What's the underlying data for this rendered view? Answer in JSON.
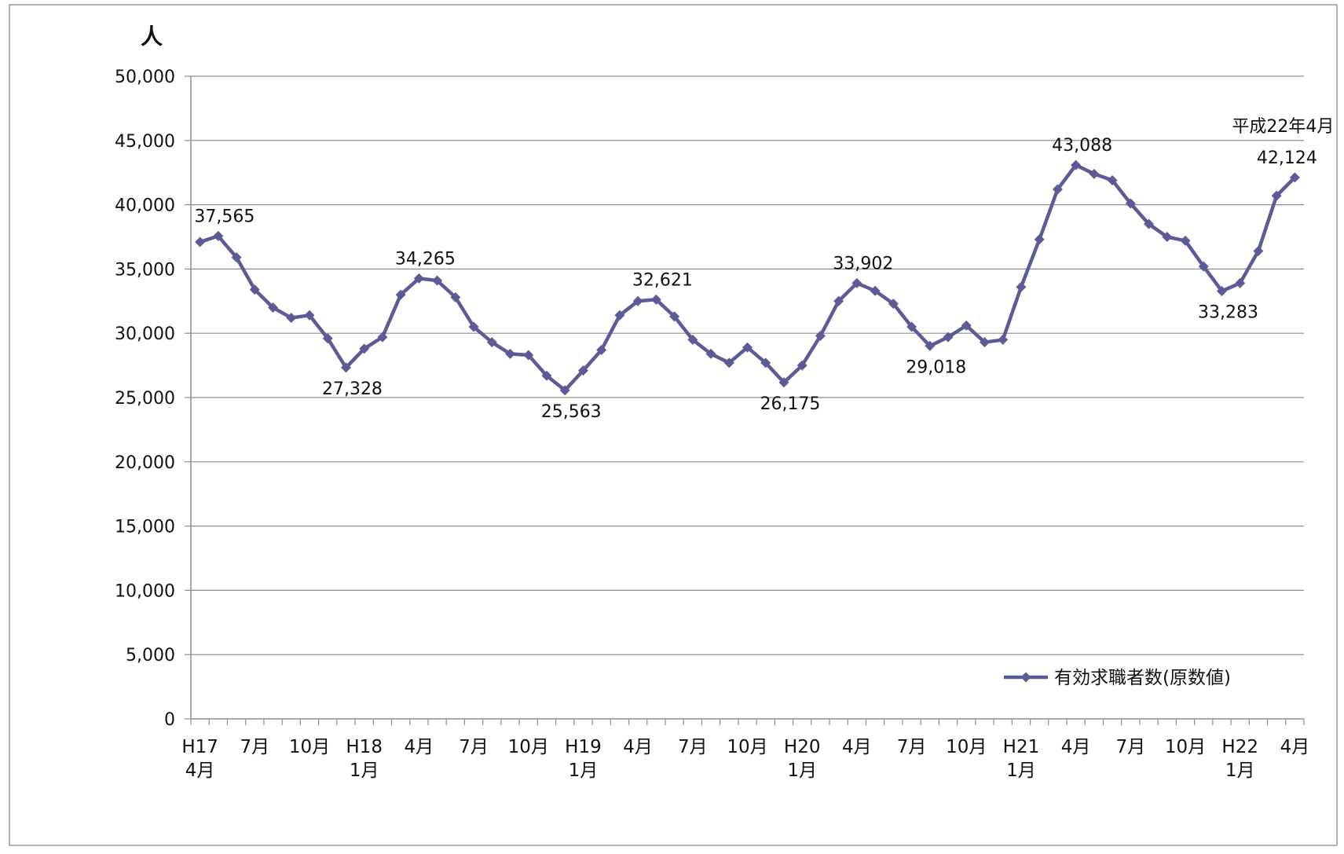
{
  "chart_data": {
    "type": "line",
    "ylabel": "人",
    "ylim": [
      0,
      50000
    ],
    "yticks": [
      0,
      5000,
      10000,
      15000,
      20000,
      25000,
      30000,
      35000,
      40000,
      45000,
      50000
    ],
    "ytick_labels": [
      "0",
      "5,000",
      "10,000",
      "15,000",
      "20,000",
      "25,000",
      "30,000",
      "35,000",
      "40,000",
      "45,000",
      "50,000"
    ],
    "grid": true,
    "legend_position": "bottom-right",
    "x_tick_labels": [
      {
        "i": 0,
        "lines": [
          "H17",
          "4月"
        ]
      },
      {
        "i": 3,
        "lines": [
          "7月"
        ]
      },
      {
        "i": 6,
        "lines": [
          "10月"
        ]
      },
      {
        "i": 9,
        "lines": [
          "H18",
          "1月"
        ]
      },
      {
        "i": 12,
        "lines": [
          "4月"
        ]
      },
      {
        "i": 15,
        "lines": [
          "7月"
        ]
      },
      {
        "i": 18,
        "lines": [
          "10月"
        ]
      },
      {
        "i": 21,
        "lines": [
          "H19",
          "1月"
        ]
      },
      {
        "i": 24,
        "lines": [
          "4月"
        ]
      },
      {
        "i": 27,
        "lines": [
          "7月"
        ]
      },
      {
        "i": 30,
        "lines": [
          "10月"
        ]
      },
      {
        "i": 33,
        "lines": [
          "H20",
          "1月"
        ]
      },
      {
        "i": 36,
        "lines": [
          "4月"
        ]
      },
      {
        "i": 39,
        "lines": [
          "7月"
        ]
      },
      {
        "i": 42,
        "lines": [
          "10月"
        ]
      },
      {
        "i": 45,
        "lines": [
          "H21",
          "1月"
        ]
      },
      {
        "i": 48,
        "lines": [
          "4月"
        ]
      },
      {
        "i": 51,
        "lines": [
          "7月"
        ]
      },
      {
        "i": 54,
        "lines": [
          "10月"
        ]
      },
      {
        "i": 57,
        "lines": [
          "H22",
          "1月"
        ]
      },
      {
        "i": 60,
        "lines": [
          "4月"
        ]
      }
    ],
    "series": [
      {
        "name": "有効求職者数(原数値)",
        "color": "#5b5b96",
        "values": [
          37100,
          37565,
          35900,
          33400,
          32000,
          31200,
          31400,
          29600,
          27328,
          28800,
          29700,
          33000,
          34265,
          34100,
          32800,
          30500,
          29300,
          28400,
          28300,
          26700,
          25563,
          27100,
          28700,
          31400,
          32500,
          32621,
          31300,
          29500,
          28400,
          27700,
          28900,
          27700,
          26175,
          27500,
          29800,
          32500,
          33902,
          33300,
          32300,
          30500,
          29018,
          29700,
          30600,
          29300,
          29500,
          33600,
          37300,
          41200,
          43088,
          42400,
          41900,
          40100,
          38500,
          37500,
          37200,
          35200,
          33283,
          33900,
          36400,
          40700,
          42124
        ]
      }
    ],
    "data_labels": [
      {
        "i": 1,
        "text": "37,565"
      },
      {
        "i": 8,
        "text": "27,328"
      },
      {
        "i": 12,
        "text": "34,265"
      },
      {
        "i": 20,
        "text": "25,563"
      },
      {
        "i": 25,
        "text": "32,621"
      },
      {
        "i": 32,
        "text": "26,175"
      },
      {
        "i": 36,
        "text": "33,902"
      },
      {
        "i": 40,
        "text": "29,018"
      },
      {
        "i": 48,
        "text": "43,088"
      },
      {
        "i": 56,
        "text": "33,283"
      },
      {
        "i": 60,
        "text": "42,124"
      }
    ],
    "annotations": [
      {
        "i": 60,
        "text": "平成22年4月"
      }
    ]
  }
}
